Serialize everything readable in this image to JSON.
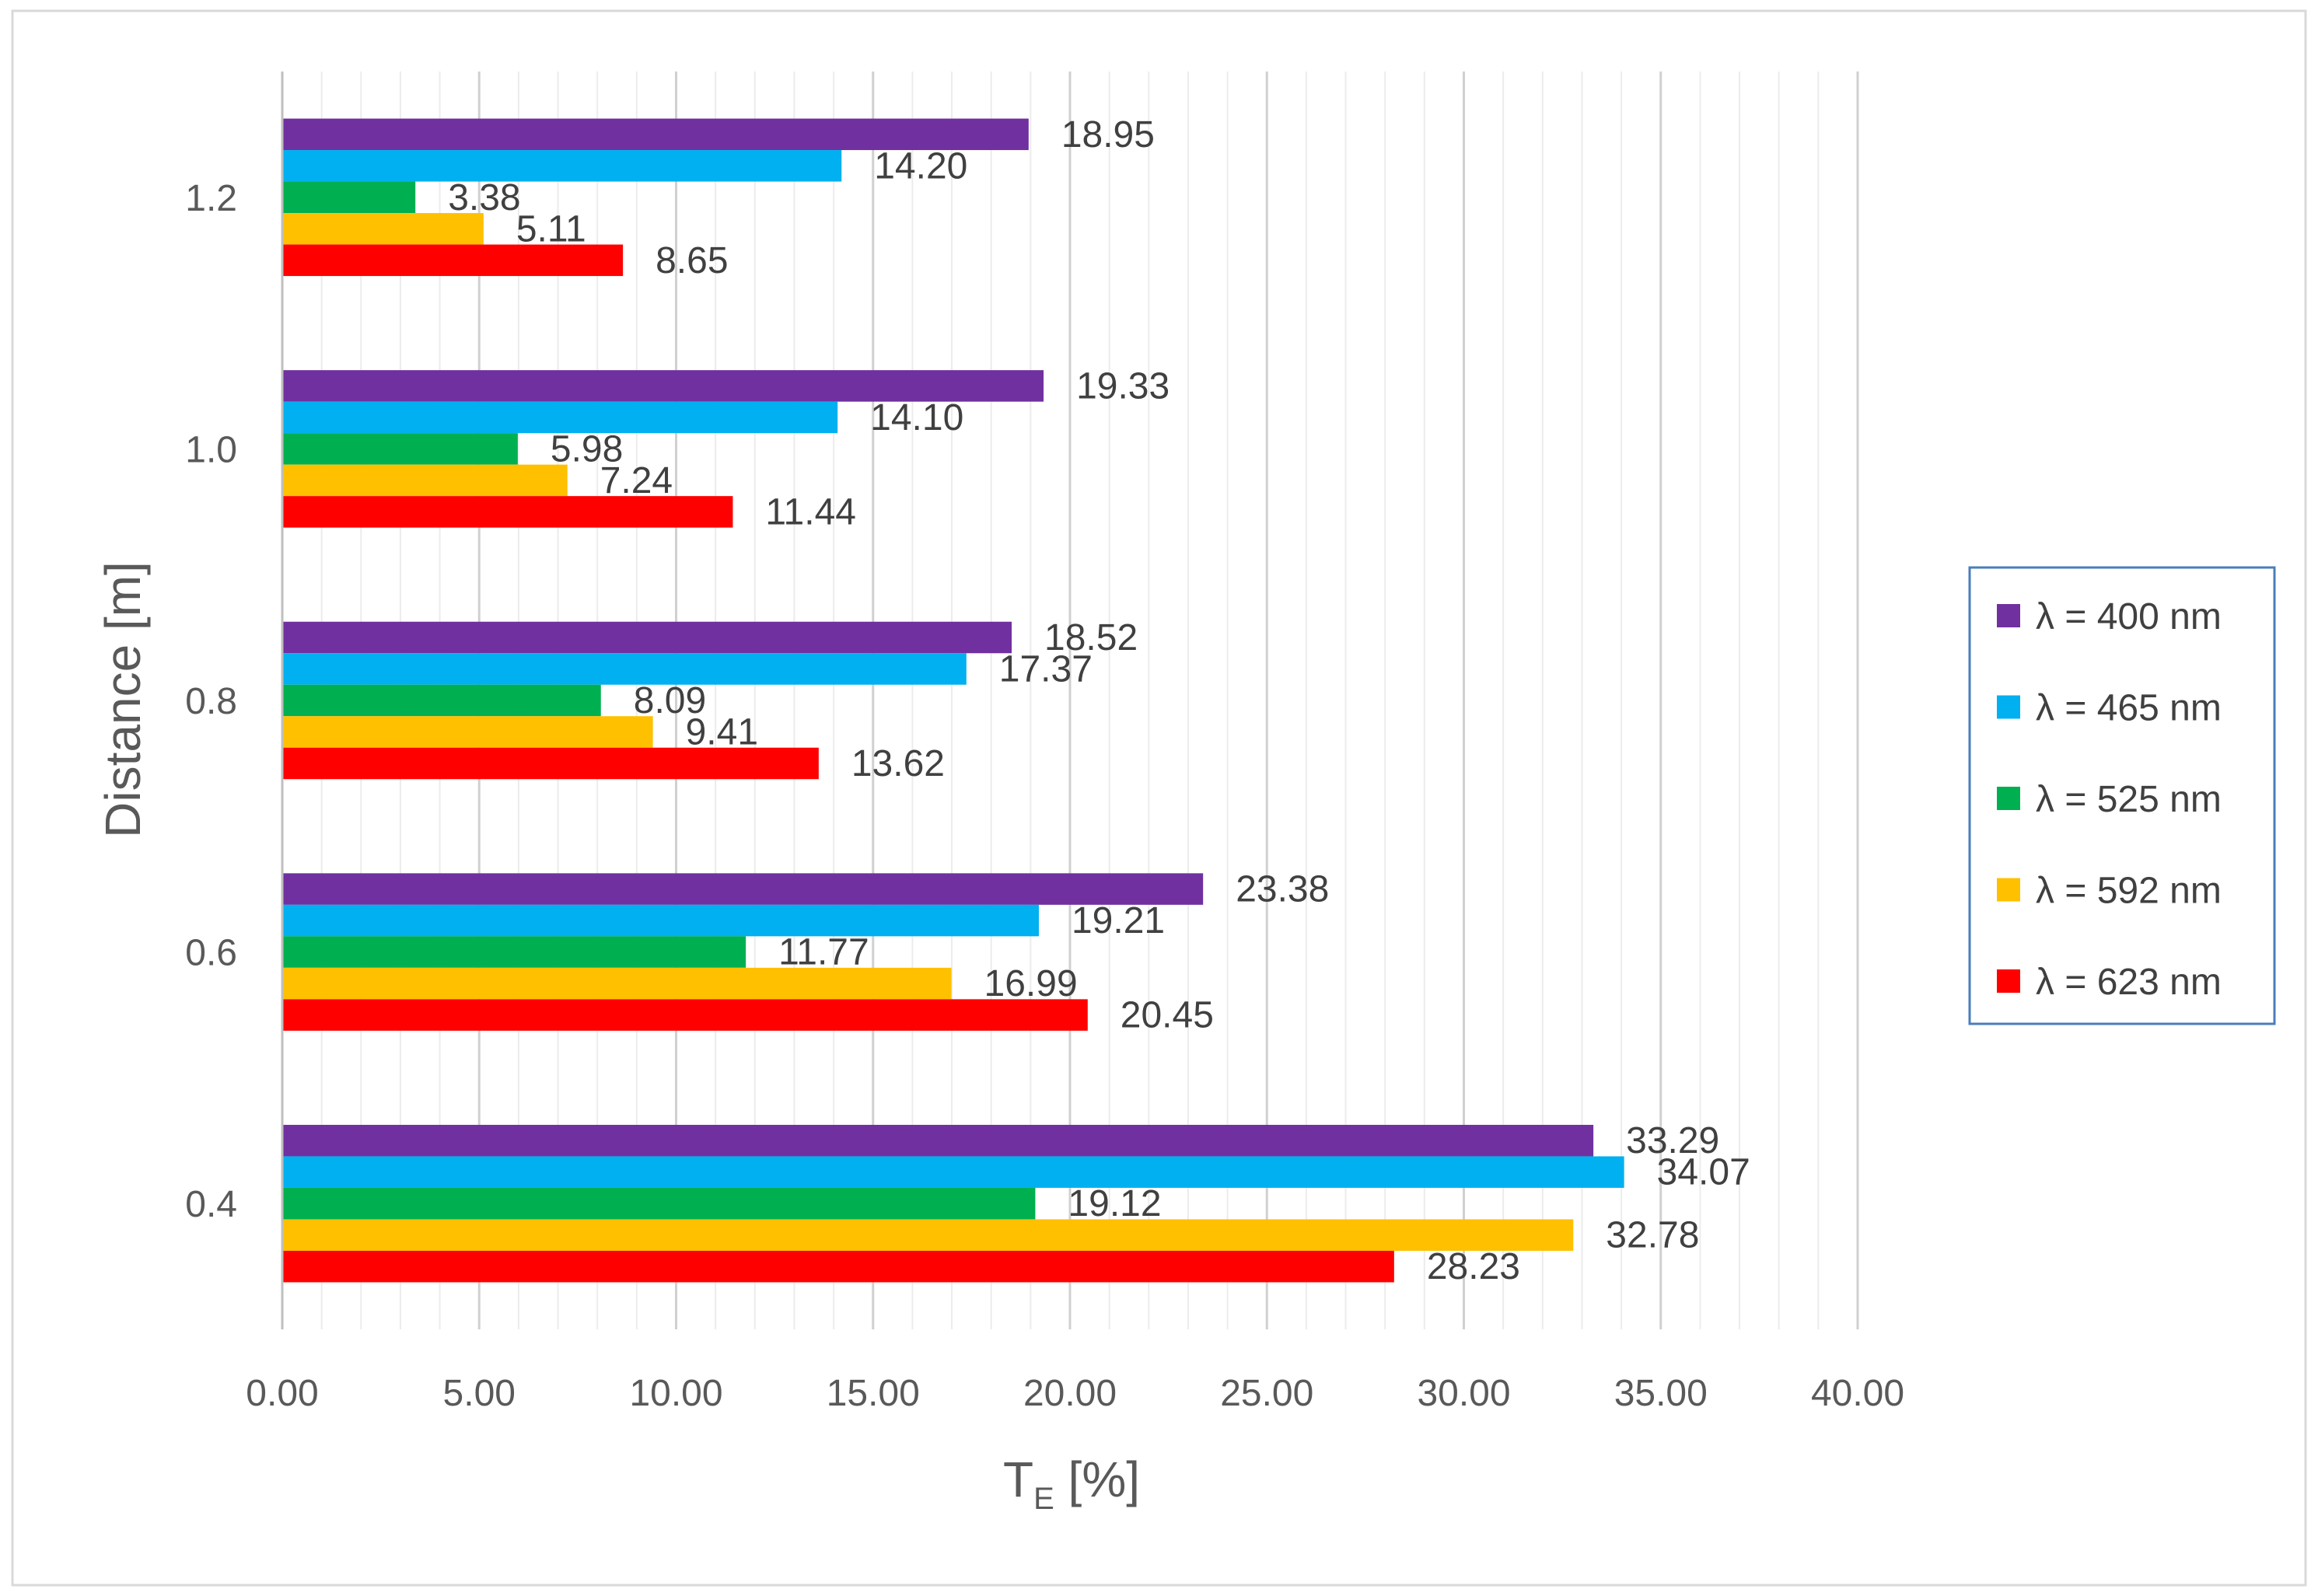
{
  "chart_data": {
    "type": "bar",
    "orientation": "horizontal",
    "title": "",
    "xlabel": "T",
    "xlabel_subscript": "E",
    "xlabel_suffix": " [%]",
    "ylabel": "Distance [m]",
    "categories": [
      "0.4",
      "0.6",
      "0.8",
      "1.0",
      "1.2"
    ],
    "xlim": [
      0,
      40
    ],
    "x_ticks": [
      "0.00",
      "5.00",
      "10.00",
      "15.00",
      "20.00",
      "25.00",
      "30.00",
      "35.00",
      "40.00"
    ],
    "series": [
      {
        "name": "λ = 400 nm",
        "color": "#7030A0",
        "values": [
          33.29,
          23.38,
          18.52,
          19.33,
          18.95
        ],
        "labels": [
          "33.29",
          "23.38",
          "18.52",
          "19.33",
          "18.95"
        ]
      },
      {
        "name": "λ = 465 nm",
        "color": "#00B0F0",
        "values": [
          34.07,
          19.21,
          17.37,
          14.1,
          14.2
        ],
        "labels": [
          "34.07",
          "19.21",
          "17.37",
          "14.10",
          "14.20"
        ]
      },
      {
        "name": "λ = 525 nm",
        "color": "#00B050",
        "values": [
          19.12,
          11.77,
          8.09,
          5.98,
          3.38
        ],
        "labels": [
          "19.12",
          "11.77",
          "8.09",
          "5.98",
          "3.38"
        ]
      },
      {
        "name": "λ = 592 nm",
        "color": "#FFC000",
        "values": [
          32.78,
          16.99,
          9.41,
          7.24,
          5.11
        ],
        "labels": [
          "32.78",
          "16.99",
          "9.41",
          "7.24",
          "5.11"
        ]
      },
      {
        "name": "λ = 623 nm",
        "color": "#FF0000",
        "values": [
          28.23,
          20.45,
          13.62,
          11.44,
          8.65
        ],
        "labels": [
          "28.23",
          "20.45",
          "13.62",
          "11.44",
          "8.65"
        ]
      }
    ],
    "grid": true,
    "legend_position": "right"
  }
}
